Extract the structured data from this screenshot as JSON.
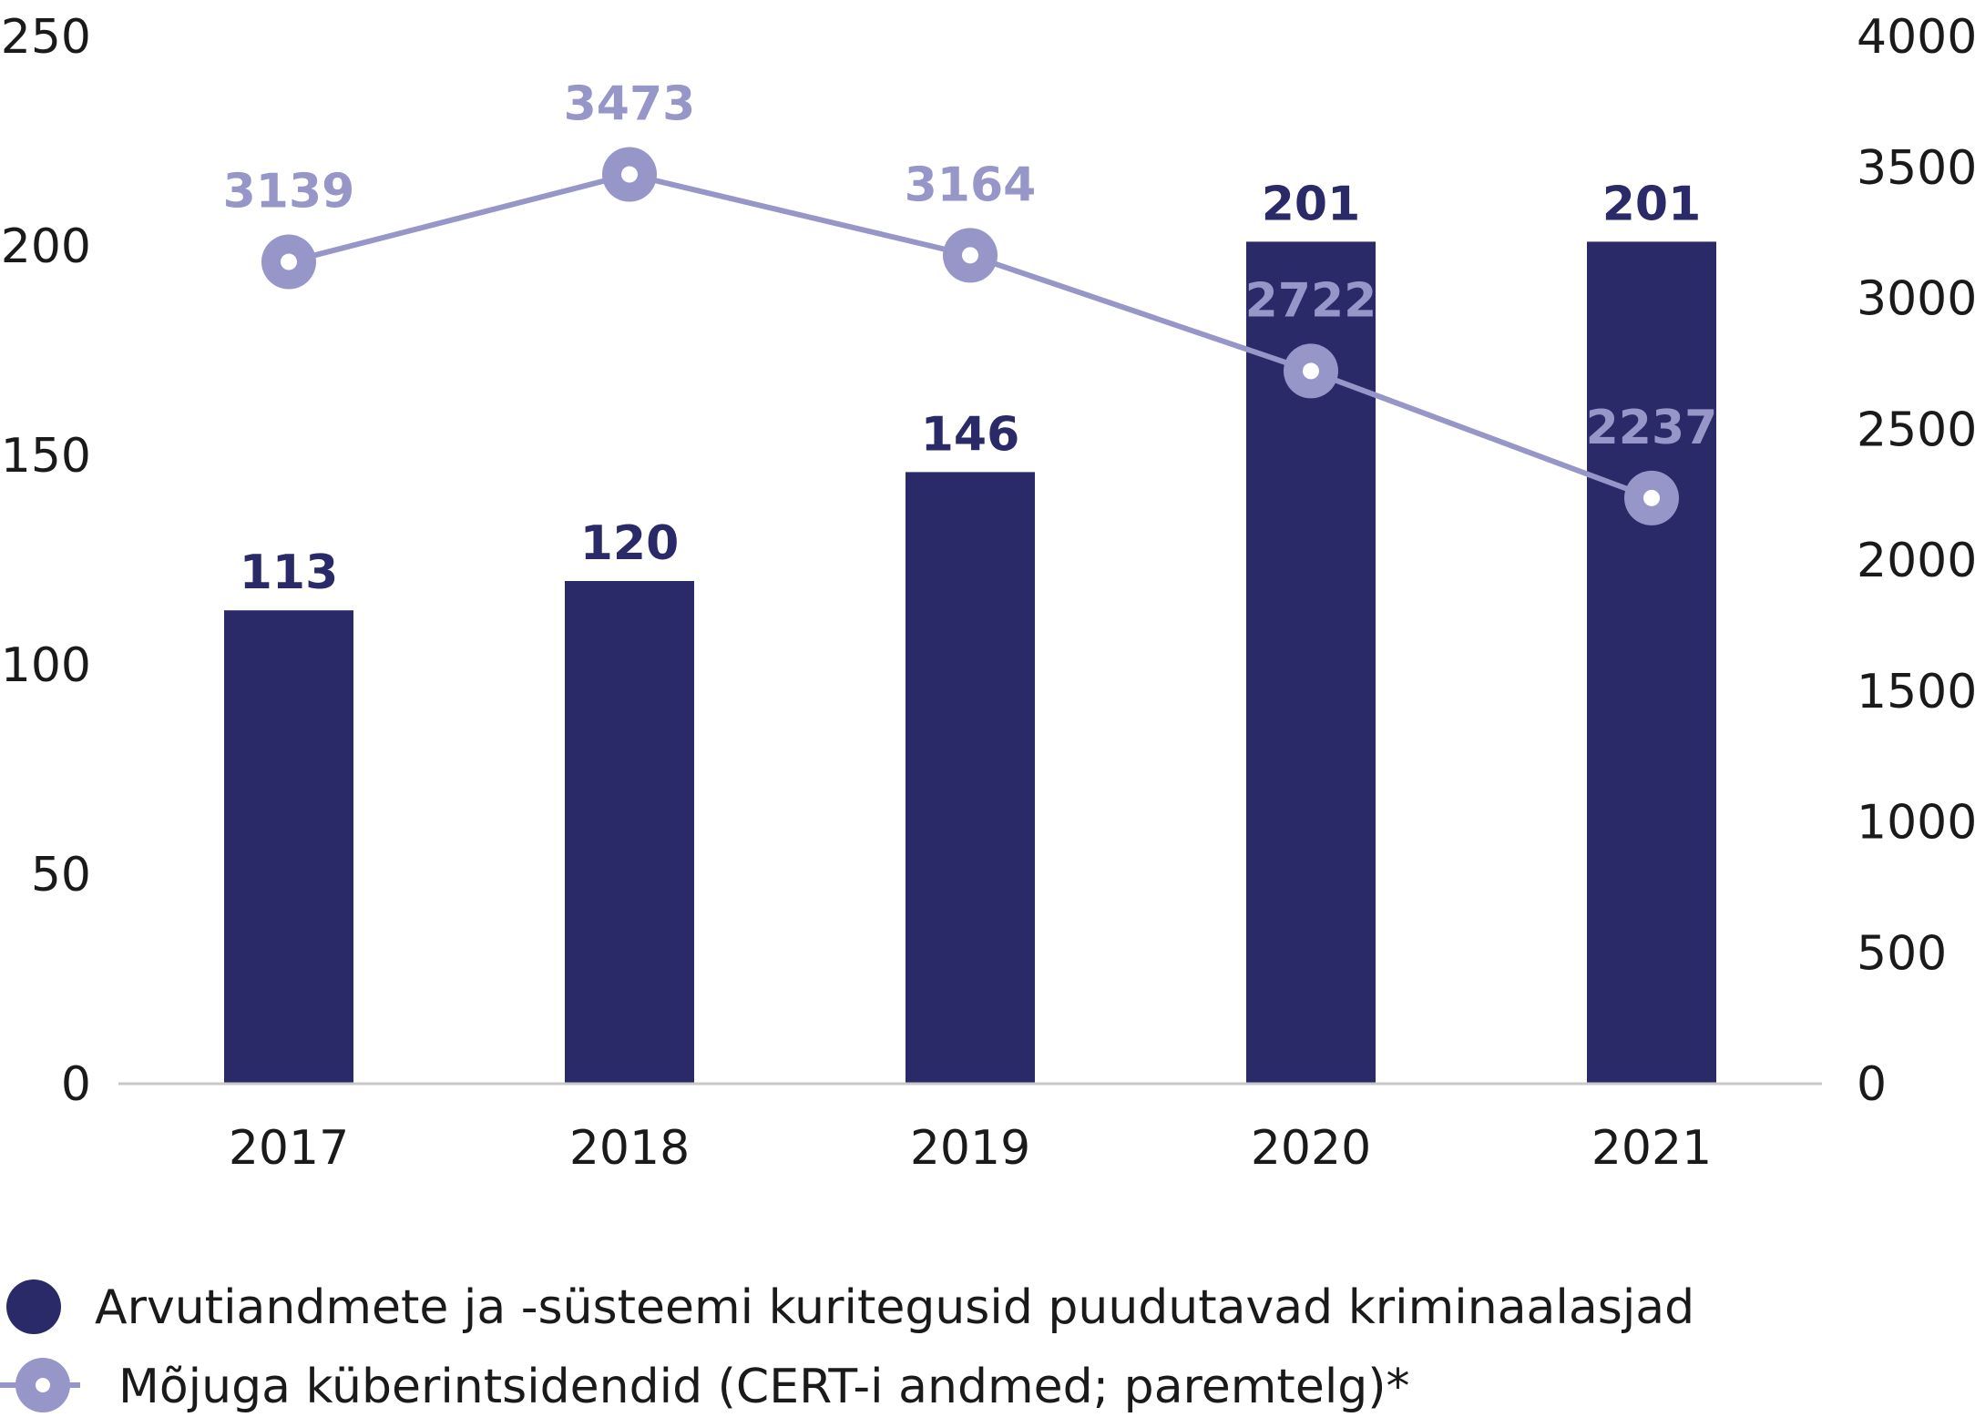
{
  "colors": {
    "bar": "#2a2a68",
    "line": "#9796c8",
    "axis": "#c8c8c8",
    "text": "#1a1a1a",
    "marker_inner": "#ffffff"
  },
  "chart_data": {
    "type": "bar",
    "categories": [
      "2017",
      "2018",
      "2019",
      "2020",
      "2021"
    ],
    "series": [
      {
        "name": "Arvutiandmete ja -süsteemi kuritegusid puudutavad kriminaalasjad",
        "type": "bar",
        "axis": "left",
        "values": [
          113,
          120,
          146,
          201,
          201
        ],
        "labels": [
          "113",
          "120",
          "146",
          "201",
          "201"
        ]
      },
      {
        "name": "Mõjuga küberintsidendid (CERT-i andmed; paremtelg)*",
        "type": "line",
        "axis": "right",
        "values": [
          3139,
          3473,
          3164,
          2722,
          2237
        ],
        "labels": [
          "3139",
          "3473",
          "3164",
          "2722",
          "2237"
        ]
      }
    ],
    "y_left": {
      "ylim": [
        0,
        250
      ],
      "ticks": [
        0,
        50,
        100,
        150,
        200,
        250
      ],
      "tick_labels": [
        "0",
        "50",
        "100",
        "150",
        "200",
        "250"
      ]
    },
    "y_right": {
      "ylim": [
        0,
        4000
      ],
      "ticks": [
        0,
        500,
        1000,
        1500,
        2000,
        2500,
        3000,
        3500,
        4000
      ],
      "tick_labels": [
        "0",
        "500",
        "1000",
        "1500",
        "2000",
        "2500",
        "3000",
        "3500",
        "4000"
      ]
    },
    "grid": false,
    "legend_position": "bottom-left"
  }
}
